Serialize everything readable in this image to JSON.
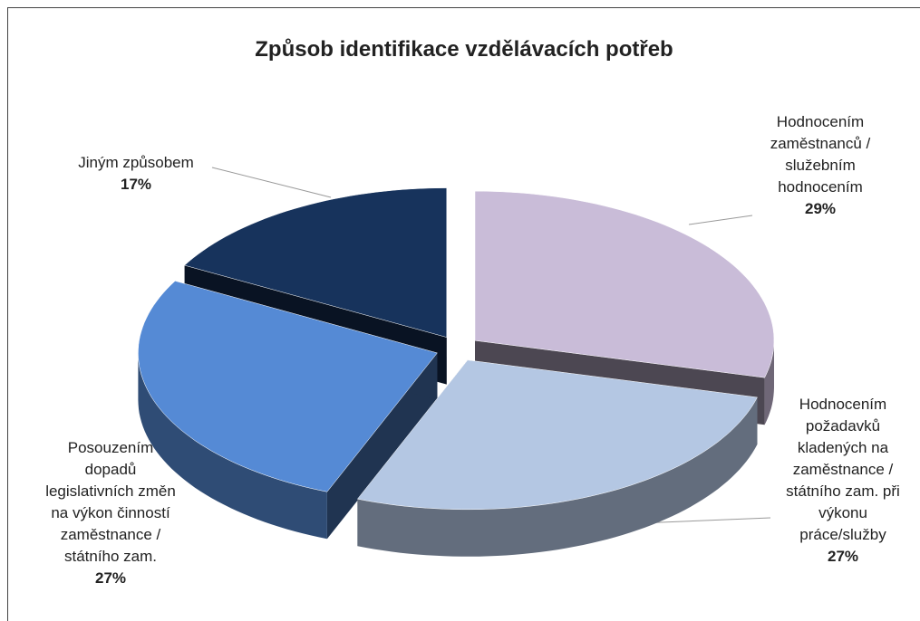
{
  "chart_data": {
    "type": "pie3d",
    "title": "Způsob identifikace vzdělávacích potřeb",
    "categories": [
      "Hodnocením zaměstnanců / služebním hodnocením",
      "Hodnocením požadavků kladených na zaměstnance / státního zam. při výkonu práce/služby",
      "Posouzením dopadů legislativních změn na výkon činností zaměstnance / státního zam.",
      "Jiným způsobem"
    ],
    "values": [
      29,
      27,
      27,
      17
    ],
    "value_labels": [
      "29%",
      "27%",
      "27%",
      "17%"
    ],
    "colors": [
      "#c9bcd8",
      "#b4c7e3",
      "#558ad5",
      "#17335c"
    ]
  }
}
